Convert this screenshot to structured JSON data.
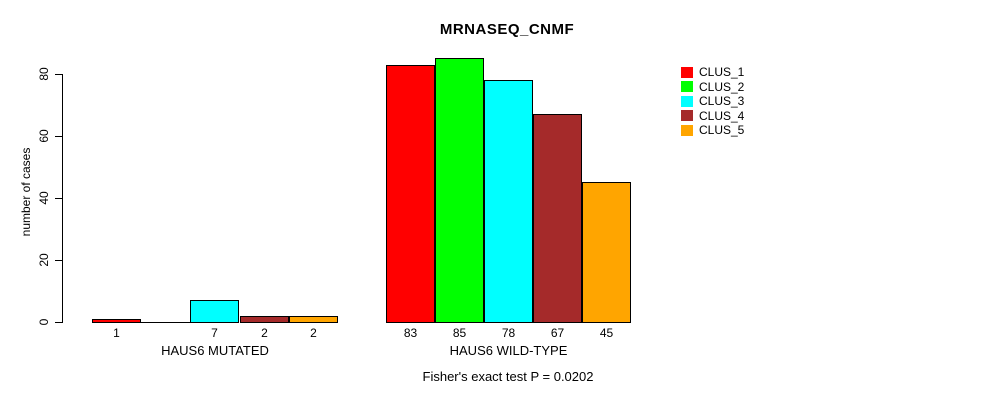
{
  "title": "MRNASEQ_CNMF",
  "caption": "Fisher's exact test P = 0.0202",
  "axis": {
    "y_label": "number of cases",
    "y_ticks": [
      "0",
      "20",
      "40",
      "60",
      "80"
    ]
  },
  "legend": {
    "items": [
      {
        "label": "CLUS_1",
        "color": "#FF0000"
      },
      {
        "label": "CLUS_2",
        "color": "#00FF00"
      },
      {
        "label": "CLUS_3",
        "color": "#00FFFF"
      },
      {
        "label": "CLUS_4",
        "color": "#A52A2A"
      },
      {
        "label": "CLUS_5",
        "color": "#FFA500"
      }
    ]
  },
  "chart_data": {
    "type": "bar",
    "title": "MRNASEQ_CNMF",
    "xlabel": "",
    "ylabel": "number of cases",
    "ylim": [
      0,
      80
    ],
    "y_ticks": [
      0,
      20,
      40,
      60,
      80
    ],
    "grid": false,
    "legend_position": "right-outside",
    "categories": [
      "HAUS6 MUTATED",
      "HAUS6 WILD-TYPE"
    ],
    "series": [
      {
        "name": "CLUS_1",
        "color": "#FF0000",
        "values": [
          1,
          83
        ]
      },
      {
        "name": "CLUS_2",
        "color": "#00FF00",
        "values": [
          0,
          85
        ]
      },
      {
        "name": "CLUS_3",
        "color": "#00FFFF",
        "values": [
          7,
          78
        ]
      },
      {
        "name": "CLUS_4",
        "color": "#A52A2A",
        "values": [
          2,
          67
        ]
      },
      {
        "name": "CLUS_5",
        "color": "#FFA500",
        "values": [
          2,
          45
        ]
      }
    ],
    "bar_value_labels": [
      [
        "1",
        "",
        "7",
        "2",
        "2"
      ],
      [
        "83",
        "85",
        "78",
        "67",
        "45"
      ]
    ],
    "annotation": "Fisher's exact test P = 0.0202"
  }
}
